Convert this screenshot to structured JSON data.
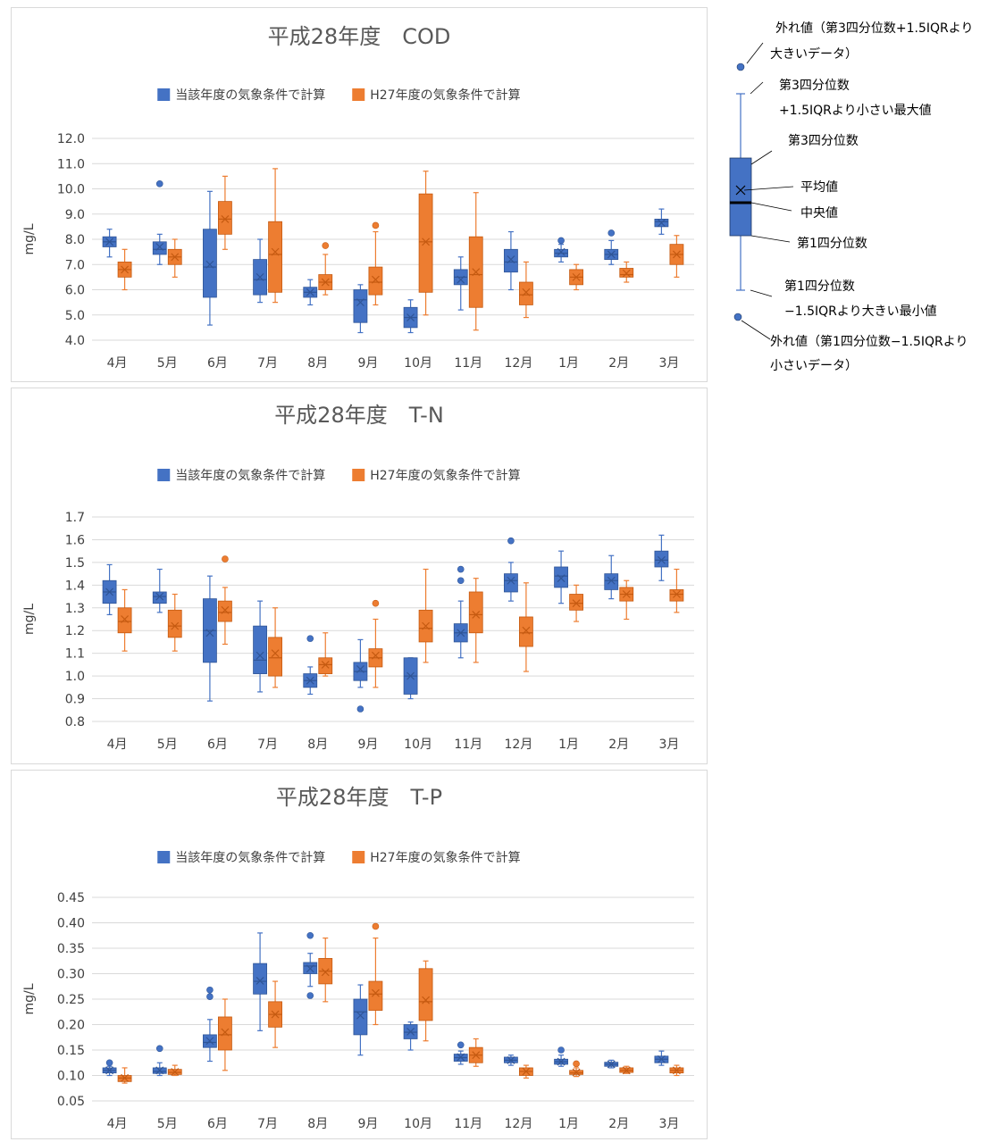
{
  "chart_data": [
    {
      "type": "boxplot",
      "title": "平成28年度　COD",
      "ylabel": "mg/L",
      "ylim": [
        4.0,
        12.0
      ],
      "yticks": [
        "4.0",
        "5.0",
        "6.0",
        "7.0",
        "8.0",
        "9.0",
        "10.0",
        "11.0",
        "12.0"
      ],
      "grid": true,
      "legend": "top",
      "categories": [
        "4月",
        "5月",
        "6月",
        "7月",
        "8月",
        "9月",
        "10月",
        "11月",
        "12月",
        "1月",
        "2月",
        "3月"
      ],
      "series": [
        {
          "name": "当該年度の気象条件で計算",
          "color": "#4472C4",
          "boxes": [
            {
              "min": 7.3,
              "q1": 7.7,
              "median": 7.9,
              "q3": 8.1,
              "max": 8.4,
              "mean": 7.9,
              "outliers": []
            },
            {
              "min": 7.0,
              "q1": 7.4,
              "median": 7.6,
              "q3": 7.9,
              "max": 8.2,
              "mean": 7.7,
              "outliers": [
                10.2
              ]
            },
            {
              "min": 4.6,
              "q1": 5.7,
              "median": 6.9,
              "q3": 8.4,
              "max": 9.9,
              "mean": 7.0,
              "outliers": []
            },
            {
              "min": 5.5,
              "q1": 5.8,
              "median": 6.4,
              "q3": 7.2,
              "max": 8.0,
              "mean": 6.5,
              "outliers": []
            },
            {
              "min": 5.4,
              "q1": 5.7,
              "median": 5.9,
              "q3": 6.1,
              "max": 6.4,
              "mean": 5.9,
              "outliers": []
            },
            {
              "min": 4.3,
              "q1": 4.7,
              "median": 5.6,
              "q3": 6.0,
              "max": 6.2,
              "mean": 5.5,
              "outliers": []
            },
            {
              "min": 4.3,
              "q1": 4.5,
              "median": 4.9,
              "q3": 5.3,
              "max": 5.6,
              "mean": 4.9,
              "outliers": []
            },
            {
              "min": 5.2,
              "q1": 6.2,
              "median": 6.5,
              "q3": 6.8,
              "max": 7.3,
              "mean": 6.4,
              "outliers": []
            },
            {
              "min": 6.0,
              "q1": 6.7,
              "median": 7.1,
              "q3": 7.6,
              "max": 8.3,
              "mean": 7.2,
              "outliers": []
            },
            {
              "min": 7.1,
              "q1": 7.3,
              "median": 7.45,
              "q3": 7.6,
              "max": 7.8,
              "mean": 7.5,
              "outliers": [
                7.95
              ]
            },
            {
              "min": 7.0,
              "q1": 7.2,
              "median": 7.4,
              "q3": 7.6,
              "max": 7.95,
              "mean": 7.4,
              "outliers": [
                8.25
              ]
            },
            {
              "min": 8.2,
              "q1": 8.5,
              "median": 8.7,
              "q3": 8.8,
              "max": 9.2,
              "mean": 8.65,
              "outliers": []
            }
          ]
        },
        {
          "name": "H27年度の気象条件で計算",
          "color": "#ED7D31",
          "boxes": [
            {
              "min": 6.0,
              "q1": 6.5,
              "median": 6.8,
              "q3": 7.1,
              "max": 7.6,
              "mean": 6.8,
              "outliers": []
            },
            {
              "min": 6.5,
              "q1": 7.0,
              "median": 7.3,
              "q3": 7.6,
              "max": 8.0,
              "mean": 7.3,
              "outliers": []
            },
            {
              "min": 7.6,
              "q1": 8.2,
              "median": 8.8,
              "q3": 9.5,
              "max": 10.5,
              "mean": 8.8,
              "outliers": []
            },
            {
              "min": 5.5,
              "q1": 5.9,
              "median": 7.4,
              "q3": 8.7,
              "max": 10.8,
              "mean": 7.5,
              "outliers": []
            },
            {
              "min": 5.8,
              "q1": 6.0,
              "median": 6.3,
              "q3": 6.6,
              "max": 7.4,
              "mean": 6.3,
              "outliers": [
                7.75
              ]
            },
            {
              "min": 5.4,
              "q1": 5.8,
              "median": 6.3,
              "q3": 6.9,
              "max": 8.3,
              "mean": 6.4,
              "outliers": [
                8.55
              ]
            },
            {
              "min": 5.0,
              "q1": 5.9,
              "median": 7.9,
              "q3": 9.8,
              "max": 10.7,
              "mean": 7.9,
              "outliers": []
            },
            {
              "min": 4.4,
              "q1": 5.3,
              "median": 6.6,
              "q3": 8.1,
              "max": 9.85,
              "mean": 6.7,
              "outliers": []
            },
            {
              "min": 4.9,
              "q1": 5.4,
              "median": 5.8,
              "q3": 6.3,
              "max": 7.1,
              "mean": 5.9,
              "outliers": []
            },
            {
              "min": 6.0,
              "q1": 6.2,
              "median": 6.5,
              "q3": 6.8,
              "max": 7.0,
              "mean": 6.5,
              "outliers": []
            },
            {
              "min": 6.3,
              "q1": 6.5,
              "median": 6.6,
              "q3": 6.85,
              "max": 7.1,
              "mean": 6.65,
              "outliers": []
            },
            {
              "min": 6.5,
              "q1": 7.0,
              "median": 7.4,
              "q3": 7.8,
              "max": 8.15,
              "mean": 7.4,
              "outliers": []
            }
          ]
        }
      ]
    },
    {
      "type": "boxplot",
      "title": "平成28年度　T-N",
      "ylabel": "mg/L",
      "ylim": [
        0.8,
        1.7
      ],
      "yticks": [
        "0.8",
        "0.9",
        "1.0",
        "1.1",
        "1.2",
        "1.3",
        "1.4",
        "1.5",
        "1.6",
        "1.7"
      ],
      "grid": true,
      "legend": "top",
      "categories": [
        "4月",
        "5月",
        "6月",
        "7月",
        "8月",
        "9月",
        "10月",
        "11月",
        "12月",
        "1月",
        "2月",
        "3月"
      ],
      "series": [
        {
          "name": "当該年度の気象条件で計算",
          "color": "#4472C4",
          "boxes": [
            {
              "min": 1.27,
              "q1": 1.32,
              "median": 1.37,
              "q3": 1.42,
              "max": 1.49,
              "mean": 1.37,
              "outliers": []
            },
            {
              "min": 1.28,
              "q1": 1.32,
              "median": 1.35,
              "q3": 1.37,
              "max": 1.47,
              "mean": 1.35,
              "outliers": []
            },
            {
              "min": 0.89,
              "q1": 1.06,
              "median": 1.2,
              "q3": 1.34,
              "max": 1.44,
              "mean": 1.19,
              "outliers": []
            },
            {
              "min": 0.93,
              "q1": 1.01,
              "median": 1.07,
              "q3": 1.22,
              "max": 1.33,
              "mean": 1.09,
              "outliers": []
            },
            {
              "min": 0.92,
              "q1": 0.95,
              "median": 0.98,
              "q3": 1.01,
              "max": 1.04,
              "mean": 0.98,
              "outliers": [
                1.165
              ]
            },
            {
              "min": 0.95,
              "q1": 0.98,
              "median": 1.02,
              "q3": 1.06,
              "max": 1.16,
              "mean": 1.03,
              "outliers": [
                0.855
              ]
            },
            {
              "min": 0.9,
              "q1": 0.92,
              "median": 1.0,
              "q3": 1.08,
              "max": 1.08,
              "mean": 1.0,
              "outliers": []
            },
            {
              "min": 1.08,
              "q1": 1.15,
              "median": 1.19,
              "q3": 1.23,
              "max": 1.33,
              "mean": 1.19,
              "outliers": [
                1.42,
                1.47
              ]
            },
            {
              "min": 1.33,
              "q1": 1.37,
              "median": 1.42,
              "q3": 1.45,
              "max": 1.5,
              "mean": 1.42,
              "outliers": [
                1.595
              ]
            },
            {
              "min": 1.32,
              "q1": 1.39,
              "median": 1.44,
              "q3": 1.48,
              "max": 1.55,
              "mean": 1.43,
              "outliers": []
            },
            {
              "min": 1.34,
              "q1": 1.38,
              "median": 1.42,
              "q3": 1.45,
              "max": 1.53,
              "mean": 1.42,
              "outliers": []
            },
            {
              "min": 1.42,
              "q1": 1.48,
              "median": 1.51,
              "q3": 1.55,
              "max": 1.62,
              "mean": 1.51,
              "outliers": []
            }
          ]
        },
        {
          "name": "H27年度の気象条件で計算",
          "color": "#ED7D31",
          "boxes": [
            {
              "min": 1.11,
              "q1": 1.19,
              "median": 1.24,
              "q3": 1.3,
              "max": 1.38,
              "mean": 1.25,
              "outliers": []
            },
            {
              "min": 1.11,
              "q1": 1.17,
              "median": 1.22,
              "q3": 1.29,
              "max": 1.36,
              "mean": 1.22,
              "outliers": []
            },
            {
              "min": 1.14,
              "q1": 1.24,
              "median": 1.28,
              "q3": 1.33,
              "max": 1.39,
              "mean": 1.29,
              "outliers": [
                1.515
              ]
            },
            {
              "min": 0.95,
              "q1": 1.0,
              "median": 1.08,
              "q3": 1.17,
              "max": 1.3,
              "mean": 1.1,
              "outliers": []
            },
            {
              "min": 1.0,
              "q1": 1.01,
              "median": 1.05,
              "q3": 1.08,
              "max": 1.19,
              "mean": 1.05,
              "outliers": []
            },
            {
              "min": 0.95,
              "q1": 1.04,
              "median": 1.08,
              "q3": 1.12,
              "max": 1.25,
              "mean": 1.09,
              "outliers": [
                1.32
              ]
            },
            {
              "min": 1.06,
              "q1": 1.15,
              "median": 1.21,
              "q3": 1.29,
              "max": 1.47,
              "mean": 1.22,
              "outliers": []
            },
            {
              "min": 1.06,
              "q1": 1.19,
              "median": 1.27,
              "q3": 1.37,
              "max": 1.43,
              "mean": 1.27,
              "outliers": []
            },
            {
              "min": 1.02,
              "q1": 1.13,
              "median": 1.19,
              "q3": 1.26,
              "max": 1.41,
              "mean": 1.2,
              "outliers": []
            },
            {
              "min": 1.24,
              "q1": 1.29,
              "median": 1.32,
              "q3": 1.36,
              "max": 1.4,
              "mean": 1.32,
              "outliers": []
            },
            {
              "min": 1.25,
              "q1": 1.33,
              "median": 1.36,
              "q3": 1.39,
              "max": 1.42,
              "mean": 1.36,
              "outliers": []
            },
            {
              "min": 1.28,
              "q1": 1.33,
              "median": 1.36,
              "q3": 1.38,
              "max": 1.47,
              "mean": 1.36,
              "outliers": []
            }
          ]
        }
      ]
    },
    {
      "type": "boxplot",
      "title": "平成28年度　T-P",
      "ylabel": "mg/L",
      "ylim": [
        0.05,
        0.45
      ],
      "yticks": [
        "0.05",
        "0.10",
        "0.15",
        "0.20",
        "0.25",
        "0.30",
        "0.35",
        "0.40",
        "0.45"
      ],
      "grid": true,
      "legend": "top",
      "categories": [
        "4月",
        "5月",
        "6月",
        "7月",
        "8月",
        "9月",
        "10月",
        "11月",
        "12月",
        "1月",
        "2月",
        "3月"
      ],
      "series": [
        {
          "name": "当該年度の気象条件で計算",
          "color": "#4472C4",
          "boxes": [
            {
              "min": 0.1,
              "q1": 0.105,
              "median": 0.11,
              "q3": 0.115,
              "max": 0.118,
              "mean": 0.11,
              "outliers": [
                0.125
              ]
            },
            {
              "min": 0.1,
              "q1": 0.104,
              "median": 0.108,
              "q3": 0.115,
              "max": 0.125,
              "mean": 0.11,
              "outliers": [
                0.153
              ]
            },
            {
              "min": 0.128,
              "q1": 0.155,
              "median": 0.165,
              "q3": 0.18,
              "max": 0.21,
              "mean": 0.168,
              "outliers": [
                0.255,
                0.268
              ]
            },
            {
              "min": 0.188,
              "q1": 0.26,
              "median": 0.285,
              "q3": 0.32,
              "max": 0.38,
              "mean": 0.286,
              "outliers": []
            },
            {
              "min": 0.275,
              "q1": 0.3,
              "median": 0.315,
              "q3": 0.322,
              "max": 0.34,
              "mean": 0.31,
              "outliers": [
                0.257,
                0.375
              ]
            },
            {
              "min": 0.14,
              "q1": 0.18,
              "median": 0.225,
              "q3": 0.25,
              "max": 0.278,
              "mean": 0.218,
              "outliers": []
            },
            {
              "min": 0.15,
              "q1": 0.172,
              "median": 0.185,
              "q3": 0.2,
              "max": 0.205,
              "mean": 0.186,
              "outliers": []
            },
            {
              "min": 0.122,
              "q1": 0.128,
              "median": 0.135,
              "q3": 0.142,
              "max": 0.148,
              "mean": 0.136,
              "outliers": [
                0.16
              ]
            },
            {
              "min": 0.12,
              "q1": 0.125,
              "median": 0.13,
              "q3": 0.136,
              "max": 0.14,
              "mean": 0.13,
              "outliers": []
            },
            {
              "min": 0.118,
              "q1": 0.122,
              "median": 0.127,
              "q3": 0.132,
              "max": 0.14,
              "mean": 0.127,
              "outliers": [
                0.15
              ]
            },
            {
              "min": 0.115,
              "q1": 0.118,
              "median": 0.122,
              "q3": 0.126,
              "max": 0.13,
              "mean": 0.122,
              "outliers": []
            },
            {
              "min": 0.12,
              "q1": 0.125,
              "median": 0.132,
              "q3": 0.138,
              "max": 0.148,
              "mean": 0.132,
              "outliers": []
            }
          ]
        },
        {
          "name": "H27年度の気象条件で計算",
          "color": "#ED7D31",
          "boxes": [
            {
              "min": 0.085,
              "q1": 0.088,
              "median": 0.095,
              "q3": 0.1,
              "max": 0.115,
              "mean": 0.095,
              "outliers": []
            },
            {
              "min": 0.1,
              "q1": 0.102,
              "median": 0.106,
              "q3": 0.112,
              "max": 0.12,
              "mean": 0.107,
              "outliers": []
            },
            {
              "min": 0.11,
              "q1": 0.15,
              "median": 0.18,
              "q3": 0.215,
              "max": 0.25,
              "mean": 0.185,
              "outliers": []
            },
            {
              "min": 0.155,
              "q1": 0.195,
              "median": 0.22,
              "q3": 0.245,
              "max": 0.285,
              "mean": 0.22,
              "outliers": []
            },
            {
              "min": 0.245,
              "q1": 0.28,
              "median": 0.305,
              "q3": 0.33,
              "max": 0.37,
              "mean": 0.303,
              "outliers": []
            },
            {
              "min": 0.2,
              "q1": 0.228,
              "median": 0.26,
              "q3": 0.285,
              "max": 0.37,
              "mean": 0.262,
              "outliers": [
                0.393
              ]
            },
            {
              "min": 0.168,
              "q1": 0.208,
              "median": 0.245,
              "q3": 0.31,
              "max": 0.325,
              "mean": 0.248,
              "outliers": []
            },
            {
              "min": 0.118,
              "q1": 0.125,
              "median": 0.14,
              "q3": 0.155,
              "max": 0.172,
              "mean": 0.14,
              "outliers": []
            },
            {
              "min": 0.095,
              "q1": 0.1,
              "median": 0.108,
              "q3": 0.115,
              "max": 0.12,
              "mean": 0.108,
              "outliers": []
            },
            {
              "min": 0.098,
              "q1": 0.102,
              "median": 0.105,
              "q3": 0.11,
              "max": 0.115,
              "mean": 0.106,
              "outliers": [
                0.123
              ]
            },
            {
              "min": 0.104,
              "q1": 0.106,
              "median": 0.11,
              "q3": 0.115,
              "max": 0.118,
              "mean": 0.11,
              "outliers": []
            },
            {
              "min": 0.1,
              "q1": 0.105,
              "median": 0.11,
              "q3": 0.115,
              "max": 0.12,
              "mean": 0.11,
              "outliers": []
            }
          ]
        }
      ]
    }
  ],
  "box_legend": {
    "outlier_high": [
      "外れ値（第3四分位数+1.5IQRより",
      "大きいデータ）"
    ],
    "whisker_max": [
      "第3四分位数",
      "+1.5IQRより小さい最大値"
    ],
    "q3": "第3四分位数",
    "mean": "平均値",
    "median": "中央値",
    "q1": "第1四分位数",
    "whisker_min": [
      "第1四分位数",
      "−1.5IQRより大きい最小値"
    ],
    "outlier_low": [
      "外れ値（第1四分位数−1.5IQRより",
      "小さいデータ）"
    ],
    "box_color": "#4472C4"
  }
}
